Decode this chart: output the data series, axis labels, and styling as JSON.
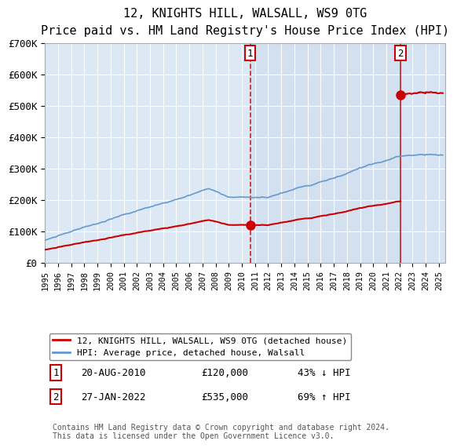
{
  "title": "12, KNIGHTS HILL, WALSALL, WS9 0TG",
  "subtitle": "Price paid vs. HM Land Registry's House Price Index (HPI)",
  "ylim": [
    0,
    700000
  ],
  "xlim_start": 1995.0,
  "xlim_end": 2025.5,
  "bg_color": "#dce9f5",
  "grid_color": "#ffffff",
  "hpi_color": "#6699cc",
  "price_color": "#cc0000",
  "sale1_date": 2010.63,
  "sale1_price": 120000,
  "sale2_date": 2022.08,
  "sale2_price": 535000,
  "legend_label1": "12, KNIGHTS HILL, WALSALL, WS9 0TG (detached house)",
  "legend_label2": "HPI: Average price, detached house, Walsall",
  "ann1": [
    "1",
    "20-AUG-2010",
    "£120,000",
    "43% ↓ HPI"
  ],
  "ann2": [
    "2",
    "27-JAN-2022",
    "£535,000",
    "69% ↑ HPI"
  ],
  "footnote": "Contains HM Land Registry data © Crown copyright and database right 2024.\nThis data is licensed under the Open Government Licence v3.0.",
  "ytick_labels": [
    "£0",
    "£100K",
    "£200K",
    "£300K",
    "£400K",
    "£500K",
    "£600K",
    "£700K"
  ],
  "ytick_values": [
    0,
    100000,
    200000,
    300000,
    400000,
    500000,
    600000,
    700000
  ]
}
